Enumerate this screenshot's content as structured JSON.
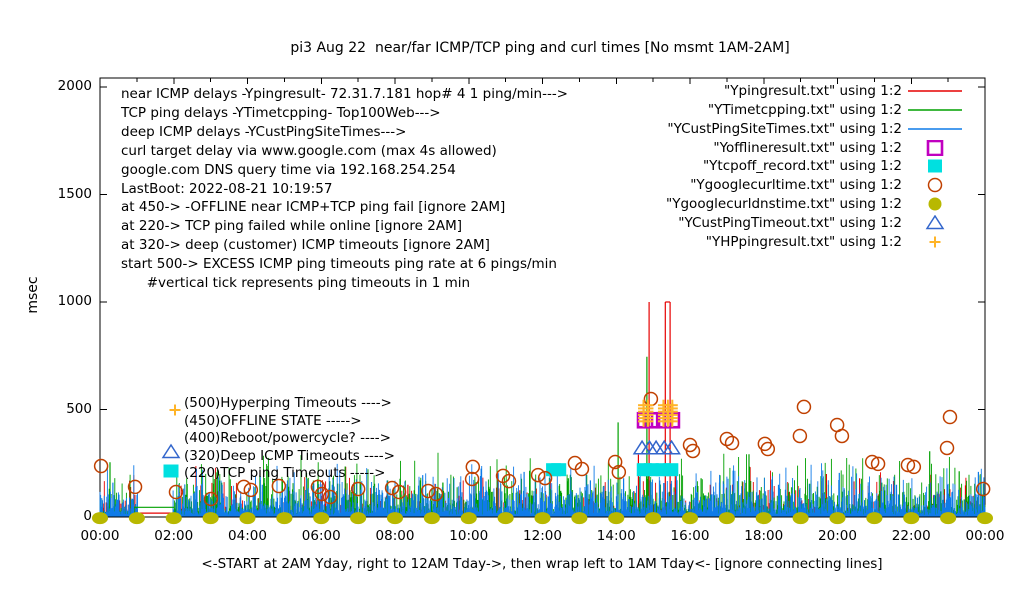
{
  "title": "pi3 Aug 22  near/far ICMP/TCP ping and curl times [No msmt 1AM-2AM]",
  "xlabel": "<-START at 2AM Yday, right to 12AM Tday->, then wrap left to 1AM Tday<- [ignore connecting lines]",
  "colors": {
    "red": "#e60000",
    "green": "#00a000",
    "blue": "#0f7be8",
    "magenta": "#c000c0",
    "cyan": "#00e0e0",
    "dark_orange": "#c04000",
    "olive": "#b8b800",
    "triangle_blue": "#3366cc",
    "hp_orange": "#ffb428",
    "axis": "#000000"
  },
  "info_lines": [
    "near ICMP delays -Ypingresult- 72.31.7.181 hop# 4 1 ping/min--->",
    "TCP ping delays -YTimetcpping- Top100Web--->",
    "deep ICMP delays -YCustPingSiteTimes--->",
    "curl target delay via www.google.com (max 4s allowed)",
    "google.com DNS query time via 192.168.254.254",
    "LastBoot: 2022-08-21 10:19:57",
    "at 450-> -OFFLINE near ICMP+TCP ping fail [ignore 2AM]",
    "at 220-> TCP ping failed while online [ignore 2AM]",
    "at 320-> deep (customer) ICMP timeouts [ignore 2AM]",
    "start 500-> EXCESS ICMP ping timeouts ping rate at 6 pings/min",
    "      #vertical tick represents ping timeouts in 1 min"
  ],
  "legend": [
    {
      "label": "\"Ypingresult.txt\" using 1:2",
      "marker": "line",
      "color": "#e60000"
    },
    {
      "label": "\"YTimetcpping.txt\" using 1:2",
      "marker": "line",
      "color": "#00a000"
    },
    {
      "label": "\"YCustPingSiteTimes.txt\" using 1:2",
      "marker": "line",
      "color": "#0f7be8"
    },
    {
      "label": "\"Yofflineresult.txt\" using 1:2",
      "marker": "open-square",
      "color": "#c000c0"
    },
    {
      "label": "\"Ytcpoff_record.txt\" using 1:2",
      "marker": "filled-square",
      "color": "#00e0e0"
    },
    {
      "label": "\"Ygooglecurltime.txt\" using 1:2",
      "marker": "open-circle",
      "color": "#c04000"
    },
    {
      "label": "\"Ygooglecurldnstime.txt\" using 1:2",
      "marker": "filled-circle",
      "color": "#b8b800"
    },
    {
      "label": "\"YCustPingTimeout.txt\" using 1:2",
      "marker": "open-triangle",
      "color": "#3366cc"
    },
    {
      "label": "\"YHPpingresult.txt\" using 1:2",
      "marker": "plus",
      "color": "#ffb428"
    }
  ],
  "annotations": [
    {
      "label": "(500)Hyperping Timeouts ---->",
      "marker": "plus",
      "color": "#ffb428"
    },
    {
      "label": "(450)OFFLINE STATE ----->",
      "marker": "none",
      "color": ""
    },
    {
      "label": "(400)Reboot/powercycle? ---->",
      "marker": "none",
      "color": ""
    },
    {
      "label": "(320)Deep ICMP Timeouts ---->",
      "marker": "open-triangle",
      "color": "#3366cc"
    },
    {
      "label": "(220)TCP ping Timeouts ----->",
      "marker": "filled-square",
      "color": "#00e0e0"
    }
  ],
  "chart_data": {
    "type": "line",
    "x_axis": {
      "ticks": [
        "00:00",
        "02:00",
        "04:00",
        "06:00",
        "08:00",
        "10:00",
        "12:00",
        "14:00",
        "16:00",
        "18:00",
        "20:00",
        "22:00",
        "00:00"
      ],
      "hours_span": 24,
      "minor_tick_every_hours": 1
    },
    "y_axis": {
      "label": "msec",
      "ticks": [
        0,
        500,
        1000,
        1500,
        2000
      ],
      "tick_labels": [
        "0",
        "500",
        "1000",
        "1500",
        "2000"
      ],
      "range": [
        0,
        2045
      ]
    },
    "gap": {
      "hours": [
        1.03,
        1.97
      ],
      "connectors": [
        {
          "color_key": "green",
          "msec": 45
        },
        {
          "color_key": "red",
          "msec": 18
        }
      ]
    },
    "impulse_series": [
      {
        "name": "near-icmp-ping-red",
        "color_key": "red",
        "noise_profile": [
          [
            0.75,
            4,
            16
          ],
          [
            0.93,
            20,
            60
          ],
          [
            0.99,
            80,
            90
          ],
          [
            1.01,
            170,
            80
          ]
        ],
        "spikes": [
          [
            14.89,
            1000
          ],
          [
            15.33,
            1000
          ],
          [
            15.46,
            1000
          ],
          [
            14.6,
            290
          ],
          [
            15.6,
            210
          ],
          [
            3.2,
            120
          ],
          [
            8.35,
            150
          ],
          [
            16.55,
            150
          ],
          [
            19.7,
            200
          ],
          [
            20.6,
            180
          ],
          [
            22.9,
            130
          ]
        ],
        "cap": [
          15.33,
          15.46,
          1000
        ]
      },
      {
        "name": "tcp-ping-green",
        "color_key": "green",
        "noise_profile": [
          [
            0.5,
            10,
            40
          ],
          [
            0.85,
            50,
            70
          ],
          [
            0.97,
            120,
            80
          ],
          [
            1.01,
            200,
            100
          ]
        ],
        "spikes": [
          [
            0.27,
            255
          ],
          [
            3.3,
            160
          ],
          [
            5.6,
            205
          ],
          [
            6.65,
            235
          ],
          [
            7.8,
            170
          ],
          [
            9.3,
            160
          ],
          [
            11.65,
            215
          ],
          [
            12.7,
            180
          ],
          [
            14.05,
            440
          ],
          [
            14.83,
            745
          ],
          [
            16.3,
            180
          ],
          [
            17.6,
            292
          ],
          [
            19.6,
            180
          ],
          [
            21.2,
            160
          ],
          [
            22.5,
            306
          ],
          [
            23.3,
            213
          ]
        ]
      },
      {
        "name": "deep-icmp-blue",
        "color_key": "blue",
        "noise_profile": [
          [
            0.5,
            10,
            40
          ],
          [
            0.85,
            50,
            70
          ],
          [
            0.97,
            120,
            70
          ],
          [
            1.01,
            190,
            60
          ]
        ],
        "spikes": [
          [
            0.35,
            160
          ],
          [
            2.6,
            140
          ],
          [
            4.4,
            150
          ],
          [
            6.3,
            150
          ],
          [
            8.75,
            195
          ],
          [
            11.5,
            210
          ],
          [
            13.3,
            170
          ],
          [
            14.2,
            180
          ],
          [
            16.8,
            160
          ],
          [
            18.4,
            150
          ],
          [
            20.05,
            205
          ],
          [
            21.6,
            150
          ],
          [
            23.82,
            210
          ]
        ]
      }
    ],
    "scatter_series": [
      {
        "name": "offline-state",
        "marker": "open-square",
        "color_key": "magenta",
        "msec": 450,
        "hours": [
          14.78,
          14.97,
          15.3,
          15.51
        ]
      },
      {
        "name": "tcp-offline-record",
        "marker": "filled-square",
        "color_key": "cyan",
        "msec": 220,
        "hours": [
          12.3,
          12.44,
          14.76,
          14.95,
          15.27,
          15.48
        ]
      },
      {
        "name": "deep-icmp-timeout",
        "marker": "open-triangle",
        "color_key": "triangle_blue",
        "msec": 320,
        "hours": [
          14.7,
          14.9,
          15.08,
          15.3,
          15.5
        ]
      },
      {
        "name": "google-curl-time",
        "marker": "open-circle",
        "color_key": "dark_orange",
        "points": [
          [
            0.03,
            237
          ],
          [
            0.95,
            140
          ],
          [
            2.06,
            116
          ],
          [
            3.01,
            84
          ],
          [
            3.9,
            140
          ],
          [
            4.09,
            126
          ],
          [
            4.85,
            144
          ],
          [
            5.91,
            140
          ],
          [
            6.02,
            107
          ],
          [
            6.24,
            93
          ],
          [
            7.0,
            130
          ],
          [
            7.92,
            135
          ],
          [
            8.11,
            116
          ],
          [
            8.9,
            121
          ],
          [
            9.11,
            107
          ],
          [
            10.09,
            177
          ],
          [
            10.11,
            233
          ],
          [
            10.93,
            191
          ],
          [
            11.09,
            167
          ],
          [
            11.88,
            195
          ],
          [
            12.07,
            181
          ],
          [
            12.88,
            251
          ],
          [
            13.07,
            223
          ],
          [
            13.97,
            256
          ],
          [
            14.07,
            209
          ],
          [
            14.94,
            549
          ],
          [
            16.0,
            335
          ],
          [
            16.08,
            307
          ],
          [
            17.0,
            363
          ],
          [
            17.14,
            344
          ],
          [
            18.03,
            340
          ],
          [
            18.11,
            316
          ],
          [
            18.98,
            377
          ],
          [
            19.09,
            512
          ],
          [
            19.99,
            428
          ],
          [
            20.12,
            377
          ],
          [
            20.94,
            256
          ],
          [
            21.1,
            247
          ],
          [
            21.91,
            242
          ],
          [
            22.07,
            233
          ],
          [
            22.97,
            321
          ],
          [
            23.05,
            465
          ],
          [
            23.95,
            130
          ]
        ]
      },
      {
        "name": "google-dns-time",
        "marker": "filled-ellipse",
        "color_key": "olive",
        "msec": 4,
        "hours": [
          0,
          1,
          2,
          3,
          4,
          5,
          6,
          7,
          8,
          9,
          10,
          11,
          12,
          13,
          14,
          15,
          16,
          17,
          18,
          19,
          20,
          21,
          22,
          23,
          24
        ]
      },
      {
        "name": "hyperping-timeouts",
        "marker": "plus",
        "color_key": "hp_orange",
        "columns": [
          14.74,
          14.86,
          15.28,
          15.4,
          15.52
        ],
        "rows": [
          445,
          460,
          475,
          490,
          505,
          520
        ]
      }
    ],
    "noise_seed": 20220822,
    "points_per_hour": 60
  }
}
